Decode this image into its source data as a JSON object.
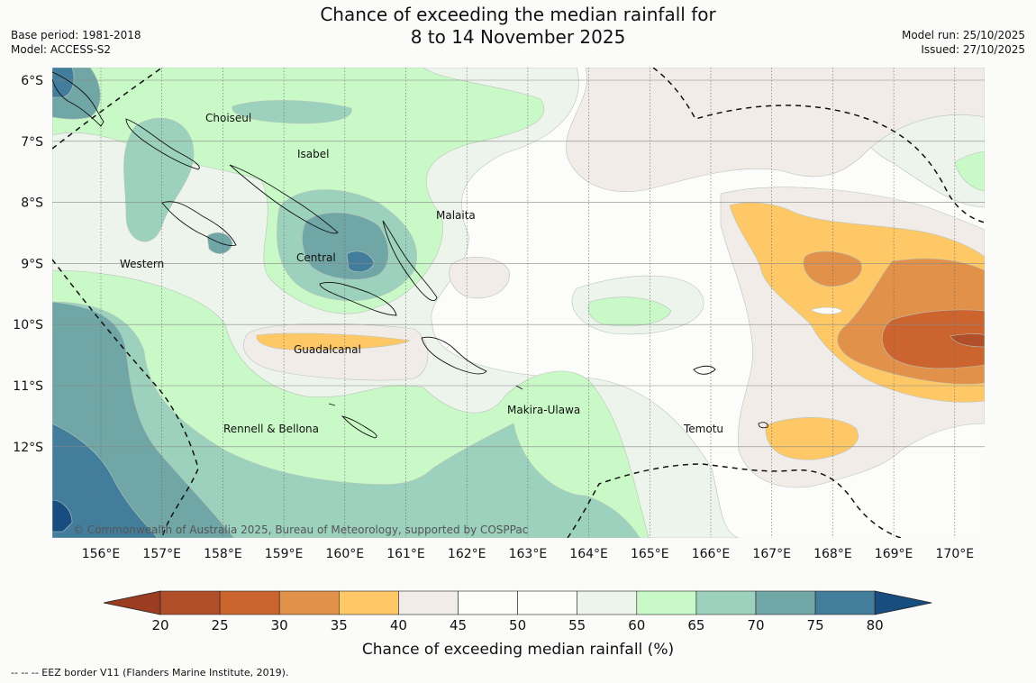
{
  "header": {
    "title_line1": "Chance of exceeding the median rainfall for",
    "title_line2": "8 to 14 November 2025",
    "base_period": "Base period: 1981-2018",
    "model": "Model: ACCESS-S2",
    "model_run": "Model run: 25/10/2025",
    "issued": "Issued: 27/10/2025"
  },
  "map": {
    "lon_labels": [
      "156°E",
      "157°E",
      "158°E",
      "159°E",
      "160°E",
      "161°E",
      "162°E",
      "163°E",
      "164°E",
      "165°E",
      "166°E",
      "167°E",
      "168°E",
      "169°E",
      "170°E"
    ],
    "lat_labels": [
      "6°S",
      "7°S",
      "8°S",
      "9°S",
      "10°S",
      "11°S",
      "12°S"
    ],
    "places": [
      "Choiseul",
      "Isabel",
      "Malaita",
      "Western",
      "Central",
      "Guadalcanal",
      "Makira-Ulawa",
      "Rennell & Bellona",
      "Temotu"
    ],
    "copyright": "© Commonwealth of Australia 2025, Bureau of Meteorology, supported by COSPPac"
  },
  "colorbar": {
    "ticks": [
      "20",
      "25",
      "30",
      "35",
      "40",
      "45",
      "50",
      "55",
      "60",
      "65",
      "70",
      "75",
      "80"
    ],
    "colors": [
      "#b14f2a",
      "#cc6430",
      "#e1914a",
      "#fdc865",
      "#f1ece8",
      "#fcfcfa",
      "#fcfcfa",
      "#edf4ec",
      "#c9f9c7",
      "#9bd1bd",
      "#70a6a5",
      "#437d9c"
    ],
    "under_color": "#9c3d22",
    "over_color": "#184d80",
    "label": "Chance of exceeding median rainfall (%)"
  },
  "footnote": "--  --  -- EEZ border V11 (Flanders Marine Institute, 2019)."
}
